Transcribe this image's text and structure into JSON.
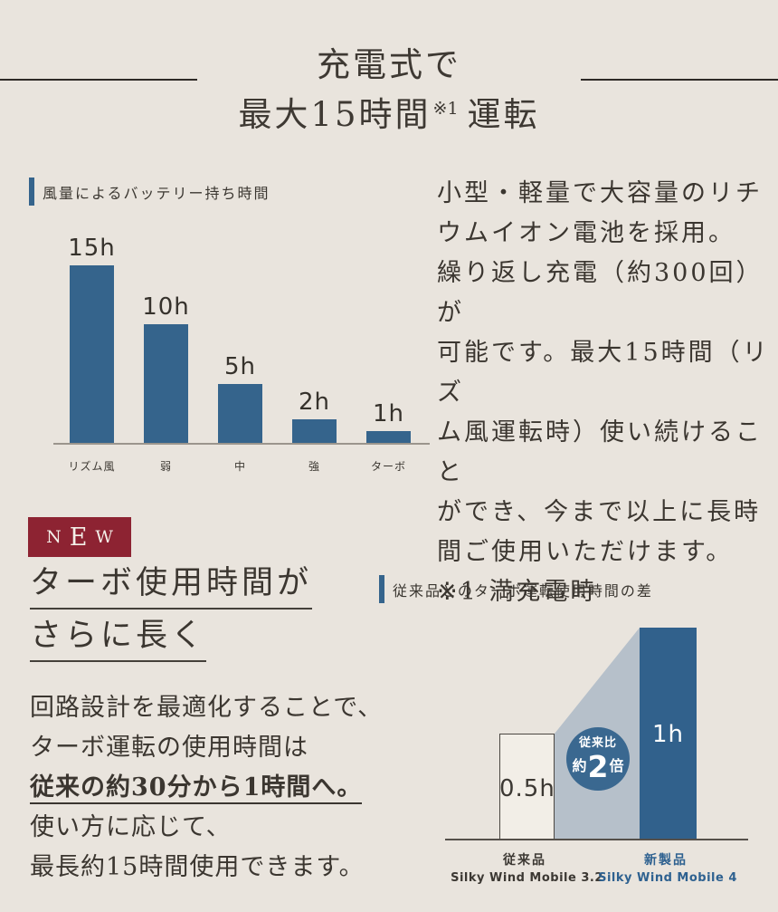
{
  "header": {
    "title_line1": "充電式で",
    "title_line2_main": "最大15時間",
    "title_line2_sup": "※1",
    "title_line2_rest": "運転"
  },
  "battery_section": {
    "chart_title": "風量によるバッテリー持ち時間",
    "description_lines": [
      "小型・軽量で大容量のリチ",
      "ウムイオン電池を採用。",
      "繰り返し充電（約300回）が",
      "可能です。最大15時間（リズ",
      "ム風運転時）使い続けること",
      "ができ、今まで以上に長時",
      "間ご使用いただけます。",
      "※1 満充電時"
    ]
  },
  "turbo_section": {
    "badge_letters": {
      "n": "N",
      "e": "E",
      "w": "W"
    },
    "heading_line1": "ターボ使用時間が",
    "heading_line2": "さらに長く",
    "description_lines": [
      {
        "text": "回路設計を最適化することで、",
        "em": false
      },
      {
        "text": "ターボ運転の使用時間は",
        "em": false
      },
      {
        "text": "従来の約30分から1時間へ。",
        "em": true
      },
      {
        "text": "使い方に応じて、",
        "em": false
      },
      {
        "text": "最長約15時間使用できます。",
        "em": false
      }
    ],
    "chart_title": "従来品とのターボ運転使用時間の差"
  },
  "comparison_annotation": {
    "top": "従来比",
    "approx": "約",
    "big": "2",
    "suffix": "倍"
  },
  "colors": {
    "background": "#e9e4dd",
    "bar_blue": "#35648c",
    "comparison_bar_blue": "#31618c",
    "wedge_gray_blue": "#b6c0ca",
    "badge_red": "#8d2332",
    "text_dark": "#3b3630",
    "label_blue": "#2e6190",
    "old_bar_fill": "#f2eee7"
  },
  "chart_data": [
    {
      "type": "bar",
      "title": "風量によるバッテリー持ち時間",
      "categories": [
        "リズム風",
        "弱",
        "中",
        "強",
        "ターボ"
      ],
      "values": [
        15,
        10,
        5,
        2,
        1
      ],
      "value_labels": [
        "15h",
        "10h",
        "5h",
        "2h",
        "1h"
      ],
      "unit": "hours",
      "xlabel": "風量",
      "ylabel": "バッテリー持ち時間",
      "ylim": [
        0,
        15
      ],
      "bar_color": "#35648c",
      "grid": false,
      "legend": "none"
    },
    {
      "type": "bar",
      "title": "従来品とのターボ運転使用時間の差",
      "categories": [
        "従来品",
        "新製品"
      ],
      "category_sub_labels": [
        "Silky Wind Mobile 3.2",
        "Silky Wind Mobile 4"
      ],
      "values": [
        0.5,
        1
      ],
      "value_labels": [
        "0.5h",
        "1h"
      ],
      "unit": "hours",
      "ylim": [
        0,
        1
      ],
      "bar_colors": [
        "#f2eee7",
        "#31618c"
      ],
      "annotation": "従来比 約2倍",
      "grid": false,
      "legend": "none"
    }
  ]
}
